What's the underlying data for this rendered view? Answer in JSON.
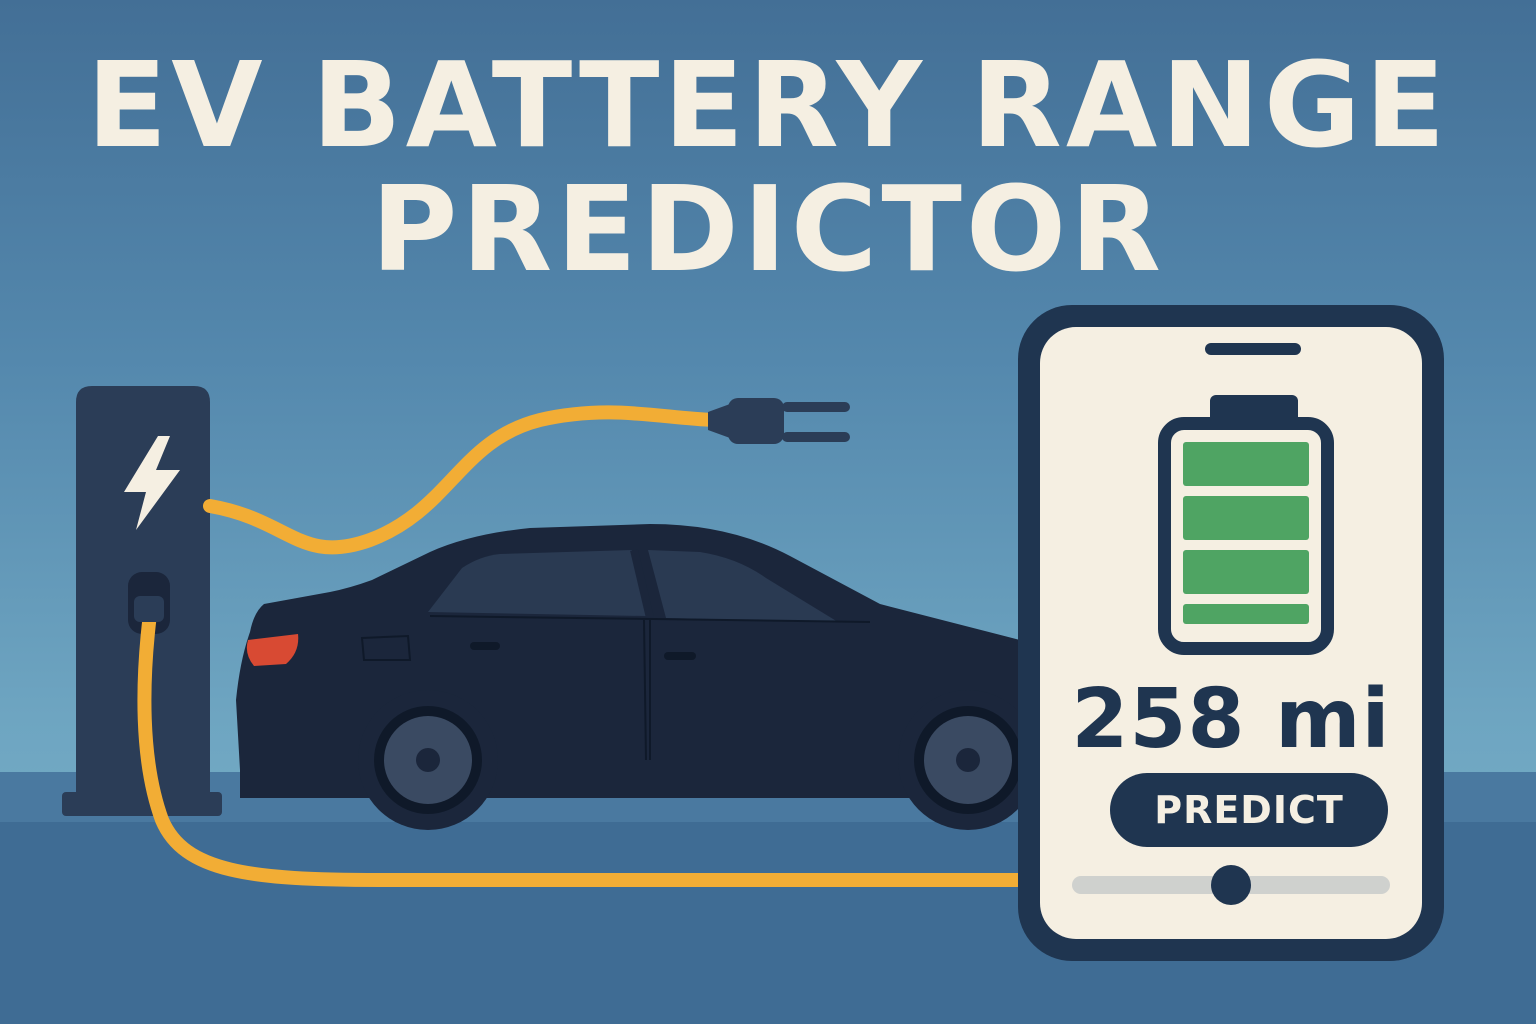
{
  "title": {
    "line1": "EV BATTERY RANGE",
    "line2": "PREDICTOR"
  },
  "phone": {
    "range_value": "258 mi",
    "predict_label": "PREDICT",
    "battery_level_bars": 4,
    "slider_value_fraction": 0.5
  },
  "icons": [
    "lightning-bolt-icon",
    "plug-icon",
    "battery-icon"
  ],
  "colors": {
    "background": "#5488ad",
    "title": "#f5efe2",
    "car": "#1b263b",
    "charger": "#2b3d57",
    "cable": "#f2ad35",
    "battery_fill": "#4fa463",
    "phone_frame": "#1f3550",
    "phone_screen": "#f5efe2",
    "tail_light": "#d84a33"
  }
}
